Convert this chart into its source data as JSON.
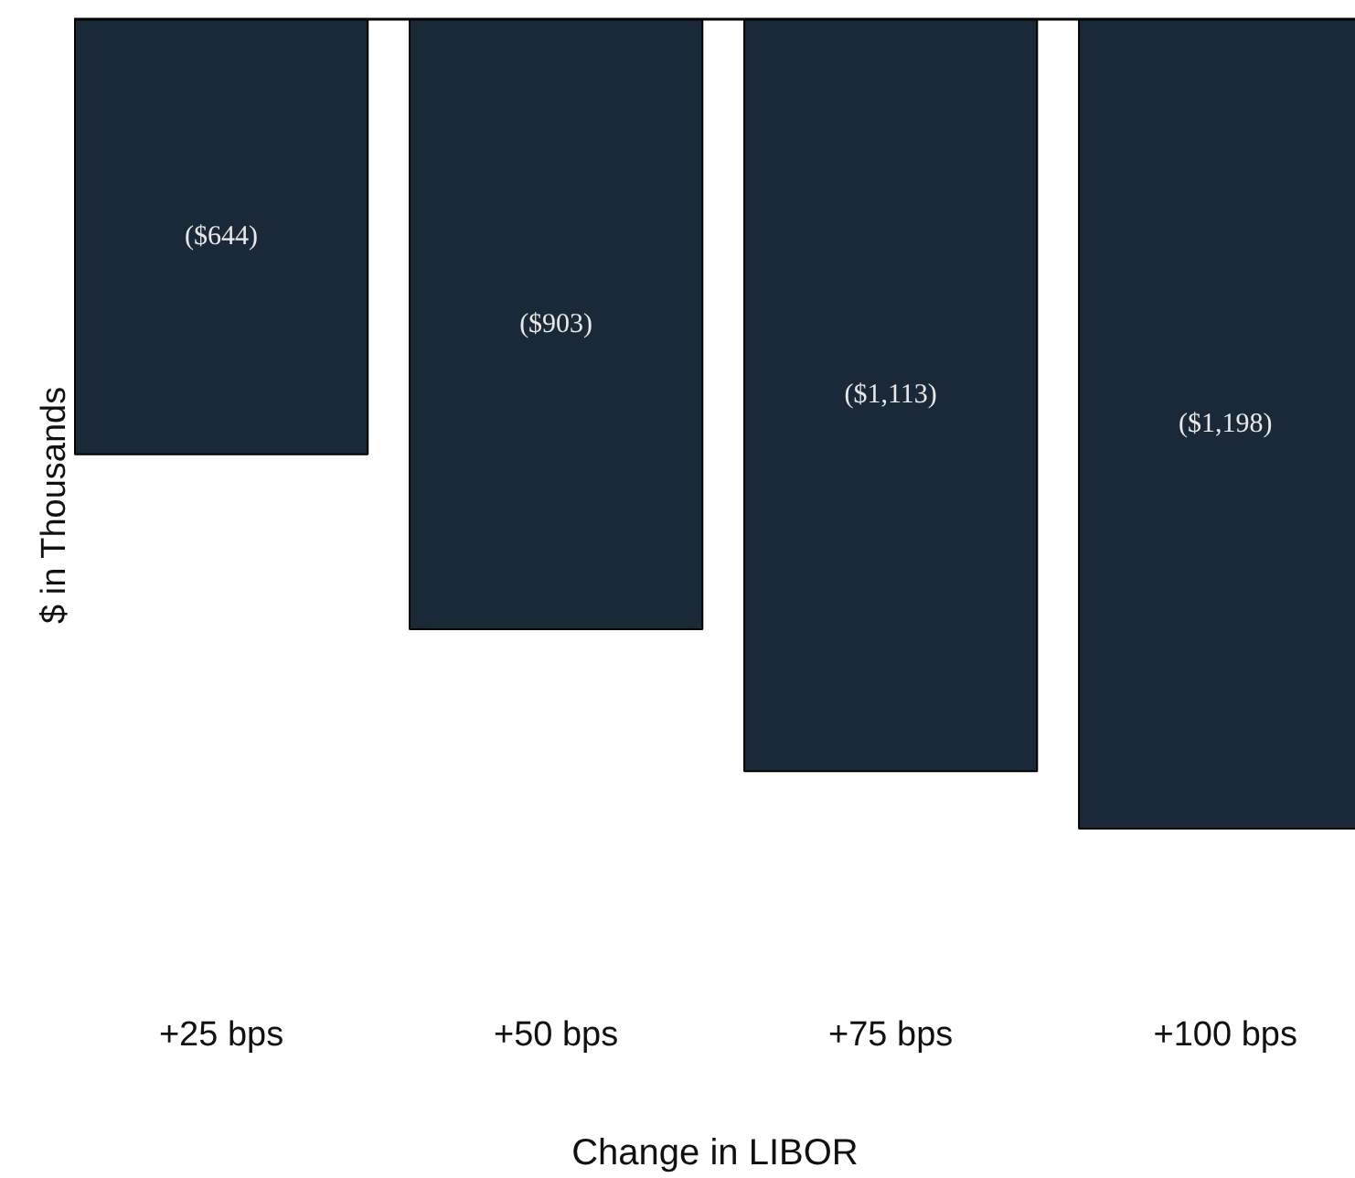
{
  "chart_data": {
    "type": "bar",
    "xlabel": "Change in LIBOR",
    "ylabel": "$ in Thousands",
    "categories": [
      "+25 bps",
      "+50 bps",
      "+75 bps",
      "+100 bps"
    ],
    "values": [
      -644,
      -903,
      -1113,
      -1198
    ],
    "value_labels": [
      "($644)",
      "($903)",
      "($1,113)",
      "($1,198)"
    ],
    "color": "#1a2937"
  }
}
